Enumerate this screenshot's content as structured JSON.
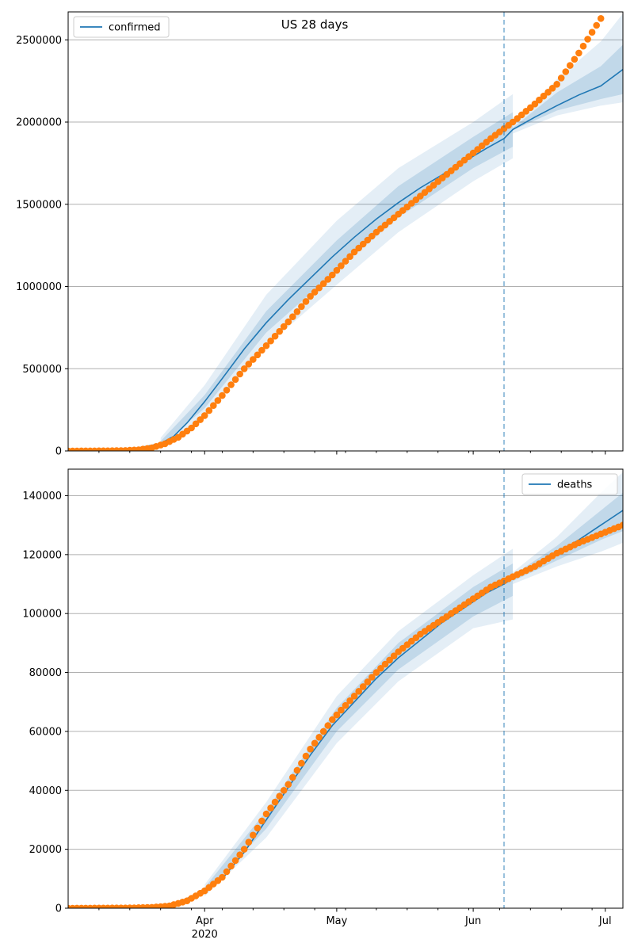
{
  "figure": {
    "title": "US 28 days"
  },
  "colors": {
    "model": "#1f77b4",
    "observed": "#ff7f0e",
    "band": "#1f77b4",
    "grid": "#b0b0b0",
    "vline": "#1f77b4"
  },
  "x_axis": {
    "range": [
      "2020-03-01",
      "2020-07-05"
    ],
    "major_ticks": [
      {
        "date": "2020-04-01",
        "label": "Apr",
        "sublabel": "2020"
      },
      {
        "date": "2020-05-01",
        "label": "May",
        "sublabel": ""
      },
      {
        "date": "2020-06-01",
        "label": "Jun",
        "sublabel": ""
      },
      {
        "date": "2020-07-01",
        "label": "Jul",
        "sublabel": ""
      }
    ],
    "minor_tick_interval_days": 7
  },
  "chart_data": [
    {
      "type": "line",
      "title": "US 28 days",
      "legend": {
        "position": "top-left",
        "label": "confirmed"
      },
      "grid": "horizontal",
      "forecast_start": "2020-06-08",
      "ylim": [
        0,
        2670000
      ],
      "yticks": [
        {
          "value": 0,
          "label": "0"
        },
        {
          "value": 500000,
          "label": "500000"
        },
        {
          "value": 1000000,
          "label": "1000000"
        },
        {
          "value": 1500000,
          "label": "1500000"
        },
        {
          "value": 2000000,
          "label": "2000000"
        },
        {
          "value": 2500000,
          "label": "2500000"
        }
      ],
      "model_fit": {
        "name": "confirmed",
        "points": [
          [
            "2020-03-01",
            0
          ],
          [
            "2020-03-15",
            8000
          ],
          [
            "2020-03-22",
            45000
          ],
          [
            "2020-03-25",
            90000
          ],
          [
            "2020-03-28",
            170000
          ],
          [
            "2020-04-01",
            300000
          ],
          [
            "2020-04-05",
            440000
          ],
          [
            "2020-04-10",
            620000
          ],
          [
            "2020-04-15",
            780000
          ],
          [
            "2020-04-20",
            920000
          ],
          [
            "2020-04-25",
            1050000
          ],
          [
            "2020-04-30",
            1180000
          ],
          [
            "2020-05-05",
            1300000
          ],
          [
            "2020-05-10",
            1410000
          ],
          [
            "2020-05-15",
            1510000
          ],
          [
            "2020-05-20",
            1600000
          ],
          [
            "2020-05-25",
            1680000
          ],
          [
            "2020-05-30",
            1760000
          ],
          [
            "2020-06-04",
            1840000
          ],
          [
            "2020-06-08",
            1900000
          ],
          [
            "2020-06-10",
            1955000
          ]
        ],
        "band_inner": [
          [
            "2020-03-22",
            30000,
            60000
          ],
          [
            "2020-04-01",
            260000,
            340000
          ],
          [
            "2020-04-15",
            720000,
            850000
          ],
          [
            "2020-05-01",
            1100000,
            1280000
          ],
          [
            "2020-05-15",
            1420000,
            1610000
          ],
          [
            "2020-06-01",
            1720000,
            1910000
          ],
          [
            "2020-06-10",
            1850000,
            2060000
          ]
        ],
        "band_outer": [
          [
            "2020-03-22",
            20000,
            80000
          ],
          [
            "2020-04-01",
            210000,
            400000
          ],
          [
            "2020-04-15",
            640000,
            950000
          ],
          [
            "2020-05-01",
            1010000,
            1400000
          ],
          [
            "2020-05-15",
            1330000,
            1720000
          ],
          [
            "2020-06-01",
            1640000,
            2000000
          ],
          [
            "2020-06-10",
            1780000,
            2170000
          ]
        ]
      },
      "forecast": {
        "points": [
          [
            "2020-06-10",
            1955000
          ],
          [
            "2020-06-15",
            2030000
          ],
          [
            "2020-06-20",
            2100000
          ],
          [
            "2020-06-25",
            2165000
          ],
          [
            "2020-06-30",
            2220000
          ],
          [
            "2020-07-05",
            2320000
          ]
        ],
        "band_inner": [
          [
            "2020-06-10",
            1950000,
            1965000
          ],
          [
            "2020-06-20",
            2070000,
            2180000
          ],
          [
            "2020-06-30",
            2140000,
            2340000
          ],
          [
            "2020-07-05",
            2170000,
            2470000
          ]
        ],
        "band_outer": [
          [
            "2020-06-10",
            1930000,
            1980000
          ],
          [
            "2020-06-20",
            2040000,
            2260000
          ],
          [
            "2020-06-30",
            2100000,
            2490000
          ],
          [
            "2020-07-05",
            2120000,
            2660000
          ]
        ]
      },
      "observed": {
        "start": "2020-03-01",
        "end": "2020-06-30",
        "knots": [
          [
            "2020-03-01",
            0
          ],
          [
            "2020-03-10",
            1000
          ],
          [
            "2020-03-14",
            3000
          ],
          [
            "2020-03-17",
            7000
          ],
          [
            "2020-03-20",
            19000
          ],
          [
            "2020-03-23",
            44000
          ],
          [
            "2020-03-26",
            83000
          ],
          [
            "2020-03-29",
            140000
          ],
          [
            "2020-04-01",
            215000
          ],
          [
            "2020-04-05",
            337000
          ],
          [
            "2020-04-10",
            500000
          ],
          [
            "2020-04-15",
            640000
          ],
          [
            "2020-04-20",
            785000
          ],
          [
            "2020-04-25",
            940000
          ],
          [
            "2020-04-30",
            1070000
          ],
          [
            "2020-05-05",
            1210000
          ],
          [
            "2020-05-10",
            1330000
          ],
          [
            "2020-05-15",
            1440000
          ],
          [
            "2020-05-20",
            1550000
          ],
          [
            "2020-05-25",
            1660000
          ],
          [
            "2020-05-31",
            1790000
          ],
          [
            "2020-06-05",
            1900000
          ],
          [
            "2020-06-10",
            2000000
          ],
          [
            "2020-06-15",
            2110000
          ],
          [
            "2020-06-20",
            2230000
          ],
          [
            "2020-06-25",
            2420000
          ],
          [
            "2020-06-30",
            2630000
          ]
        ]
      }
    },
    {
      "type": "line",
      "title": "",
      "legend": {
        "position": "top-right",
        "label": "deaths"
      },
      "grid": "horizontal",
      "forecast_start": "2020-06-08",
      "ylim": [
        0,
        149000
      ],
      "yticks": [
        {
          "value": 0,
          "label": "0"
        },
        {
          "value": 20000,
          "label": "20000"
        },
        {
          "value": 40000,
          "label": "40000"
        },
        {
          "value": 60000,
          "label": "60000"
        },
        {
          "value": 80000,
          "label": "80000"
        },
        {
          "value": 100000,
          "label": "100000"
        },
        {
          "value": 120000,
          "label": "120000"
        },
        {
          "value": 140000,
          "label": "140000"
        }
      ],
      "model_fit": {
        "name": "deaths",
        "points": [
          [
            "2020-03-01",
            0
          ],
          [
            "2020-03-20",
            500
          ],
          [
            "2020-03-26",
            2000
          ],
          [
            "2020-04-01",
            6000
          ],
          [
            "2020-04-05",
            10000
          ],
          [
            "2020-04-10",
            19000
          ],
          [
            "2020-04-15",
            30000
          ],
          [
            "2020-04-20",
            41000
          ],
          [
            "2020-04-25",
            52000
          ],
          [
            "2020-04-30",
            62000
          ],
          [
            "2020-05-05",
            70000
          ],
          [
            "2020-05-10",
            78000
          ],
          [
            "2020-05-15",
            85000
          ],
          [
            "2020-05-20",
            91000
          ],
          [
            "2020-05-25",
            97000
          ],
          [
            "2020-05-30",
            102000
          ],
          [
            "2020-06-04",
            107000
          ],
          [
            "2020-06-08",
            110000
          ],
          [
            "2020-06-10",
            112000
          ]
        ],
        "band_inner": [
          [
            "2020-04-01",
            5000,
            7000
          ],
          [
            "2020-04-15",
            27000,
            33000
          ],
          [
            "2020-05-01",
            60000,
            68000
          ],
          [
            "2020-05-15",
            81000,
            90000
          ],
          [
            "2020-06-01",
            99000,
            109000
          ],
          [
            "2020-06-10",
            106000,
            117000
          ]
        ],
        "band_outer": [
          [
            "2020-04-01",
            4000,
            8000
          ],
          [
            "2020-04-15",
            24000,
            36000
          ],
          [
            "2020-05-01",
            56000,
            72000
          ],
          [
            "2020-05-15",
            77000,
            94000
          ],
          [
            "2020-06-01",
            95000,
            113000
          ],
          [
            "2020-06-10",
            98000,
            122000
          ]
        ]
      },
      "forecast": {
        "points": [
          [
            "2020-06-10",
            112000
          ],
          [
            "2020-06-15",
            116000
          ],
          [
            "2020-06-20",
            120500
          ],
          [
            "2020-06-25",
            125000
          ],
          [
            "2020-06-30",
            130000
          ],
          [
            "2020-07-05",
            135000
          ]
        ],
        "band_inner": [
          [
            "2020-06-10",
            111000,
            113000
          ],
          [
            "2020-06-20",
            118000,
            123000
          ],
          [
            "2020-06-30",
            125000,
            135000
          ],
          [
            "2020-07-05",
            128000,
            141000
          ]
        ],
        "band_outer": [
          [
            "2020-06-10",
            110000,
            114000
          ],
          [
            "2020-06-20",
            116000,
            126000
          ],
          [
            "2020-06-30",
            121000,
            141000
          ],
          [
            "2020-07-05",
            124000,
            148000
          ]
        ]
      },
      "observed": {
        "start": "2020-03-01",
        "end": "2020-07-05",
        "knots": [
          [
            "2020-03-01",
            0
          ],
          [
            "2020-03-15",
            100
          ],
          [
            "2020-03-20",
            300
          ],
          [
            "2020-03-24",
            800
          ],
          [
            "2020-03-28",
            2500
          ],
          [
            "2020-04-01",
            5900
          ],
          [
            "2020-04-05",
            10500
          ],
          [
            "2020-04-10",
            20000
          ],
          [
            "2020-04-15",
            32000
          ],
          [
            "2020-04-20",
            42000
          ],
          [
            "2020-04-25",
            54000
          ],
          [
            "2020-04-30",
            64000
          ],
          [
            "2020-05-05",
            72000
          ],
          [
            "2020-05-10",
            80000
          ],
          [
            "2020-05-15",
            87000
          ],
          [
            "2020-05-20",
            93000
          ],
          [
            "2020-05-25",
            98000
          ],
          [
            "2020-05-31",
            104000
          ],
          [
            "2020-06-05",
            109000
          ],
          [
            "2020-06-10",
            112500
          ],
          [
            "2020-06-15",
            116000
          ],
          [
            "2020-06-20",
            120500
          ],
          [
            "2020-06-25",
            124000
          ],
          [
            "2020-06-30",
            127000
          ],
          [
            "2020-07-05",
            130000
          ]
        ]
      }
    }
  ]
}
